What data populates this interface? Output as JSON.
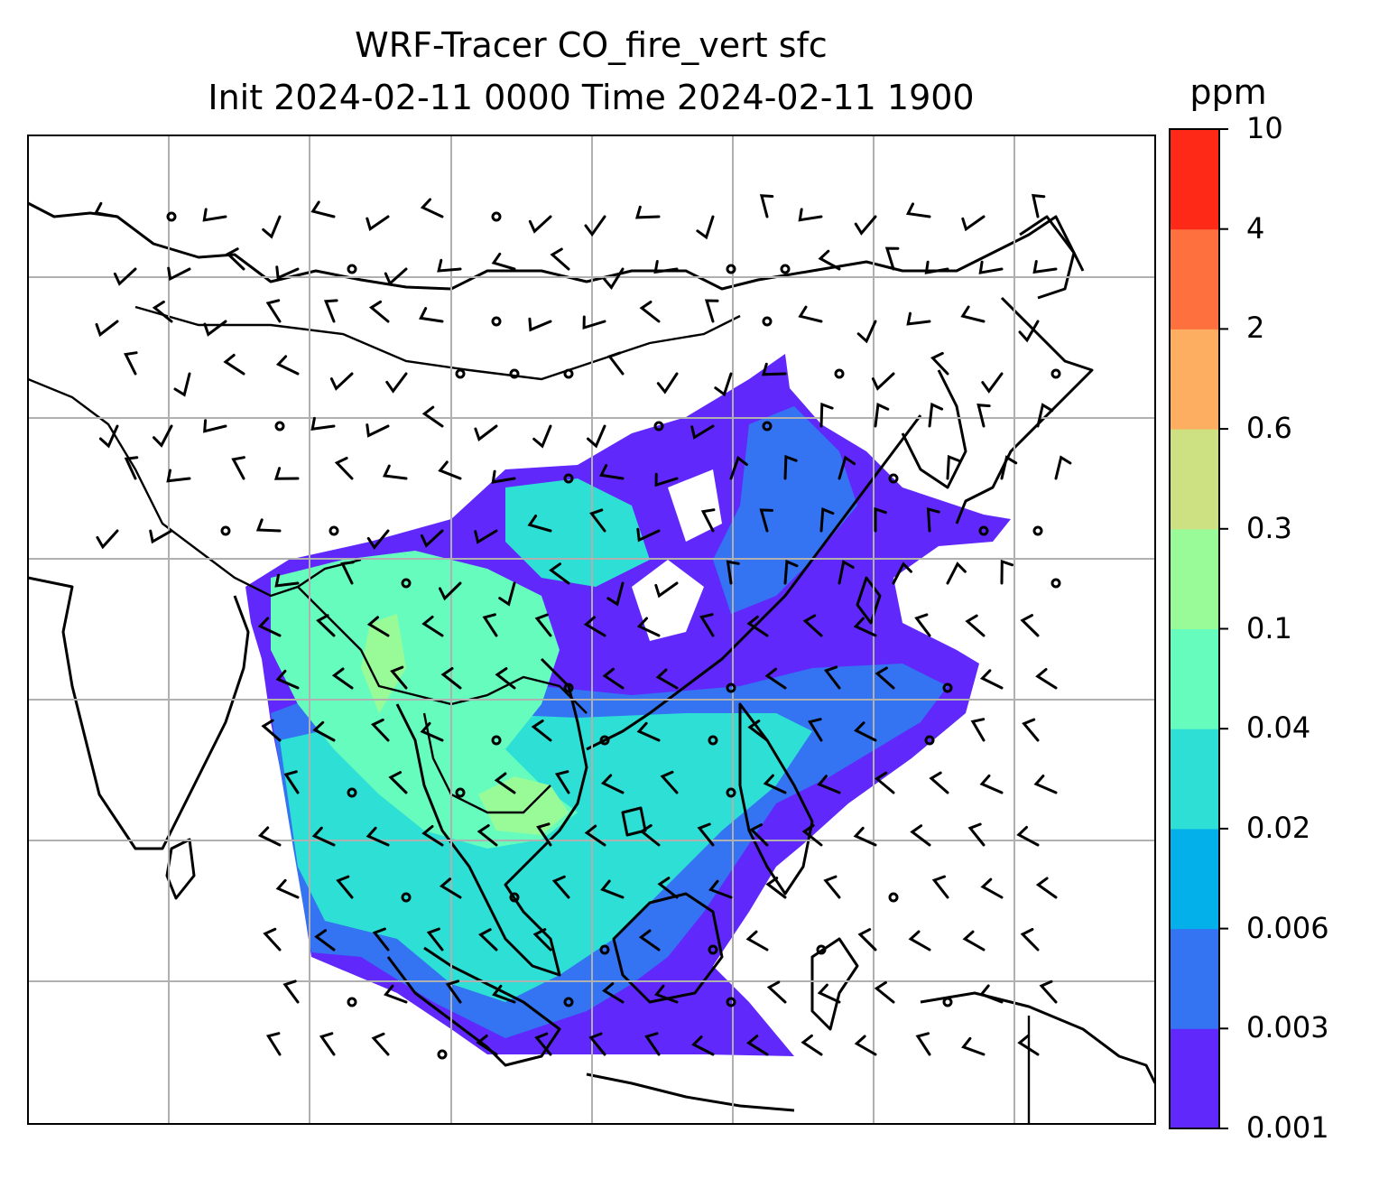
{
  "title_line1": "WRF-Tracer CO_fire_vert sfc",
  "title_line2": "Init 2024-02-11 0000 Time 2024-02-11 1900",
  "units": "ppm",
  "colorbar": {
    "levels": [
      "0.001",
      "0.003",
      "0.006",
      "0.02",
      "0.04",
      "0.1",
      "0.3",
      "0.6",
      "2",
      "4",
      "10"
    ],
    "colors": [
      "#6028fb",
      "#3473f2",
      "#04b0ea",
      "#2ddfd4",
      "#65fcbd",
      "#99fb98",
      "#cde183",
      "#feae60",
      "#fe713e",
      "#fe2a17"
    ]
  },
  "map": {
    "projection": "lat-lon grid, 8 columns x 7 rows",
    "gridlines": true,
    "overlays": [
      "coastlines",
      "country borders",
      "wind barbs",
      "CO tracer shading"
    ]
  }
}
